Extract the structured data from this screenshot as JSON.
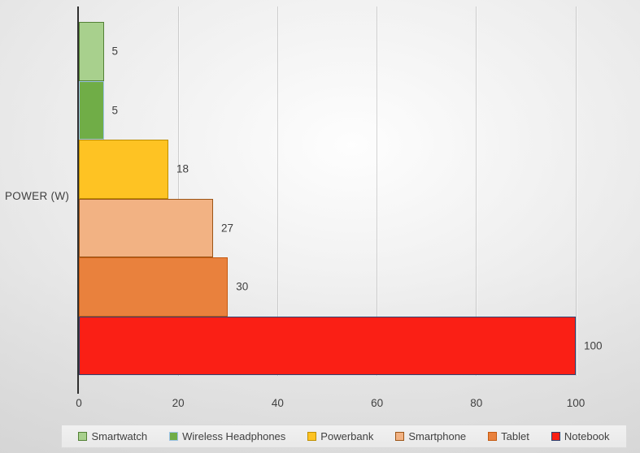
{
  "chart_data": {
    "type": "bar",
    "orientation": "horizontal",
    "title": "",
    "ylabel": "POWER (W)",
    "xlabel": "",
    "xlim": [
      0,
      100
    ],
    "x_ticks": [
      0,
      20,
      40,
      60,
      80,
      100
    ],
    "grid": true,
    "legend_position": "bottom",
    "series": [
      {
        "name": "Smartwatch",
        "value": 5,
        "fill": "#a8d08d",
        "border": "#538135"
      },
      {
        "name": "Wireless Headphones",
        "value": 5,
        "fill": "#70ad47",
        "border": "#9dc3e6"
      },
      {
        "name": "Powerbank",
        "value": 18,
        "fill": "#fec323",
        "border": "#bf8f00"
      },
      {
        "name": "Smartphone",
        "value": 27,
        "fill": "#f2b283",
        "border": "#9c5517"
      },
      {
        "name": "Tablet",
        "value": 30,
        "fill": "#e9813d",
        "border": "#c55a11"
      },
      {
        "name": "Notebook",
        "value": 100,
        "fill": "#fa1f15",
        "border": "#2e4272"
      }
    ],
    "data_labels": [
      "5",
      "5",
      "18",
      "27",
      "30",
      "100"
    ]
  },
  "colors": {
    "axis_line": "#2f2f2f",
    "grid_line": "#c9c9c9",
    "text": "#404040"
  }
}
